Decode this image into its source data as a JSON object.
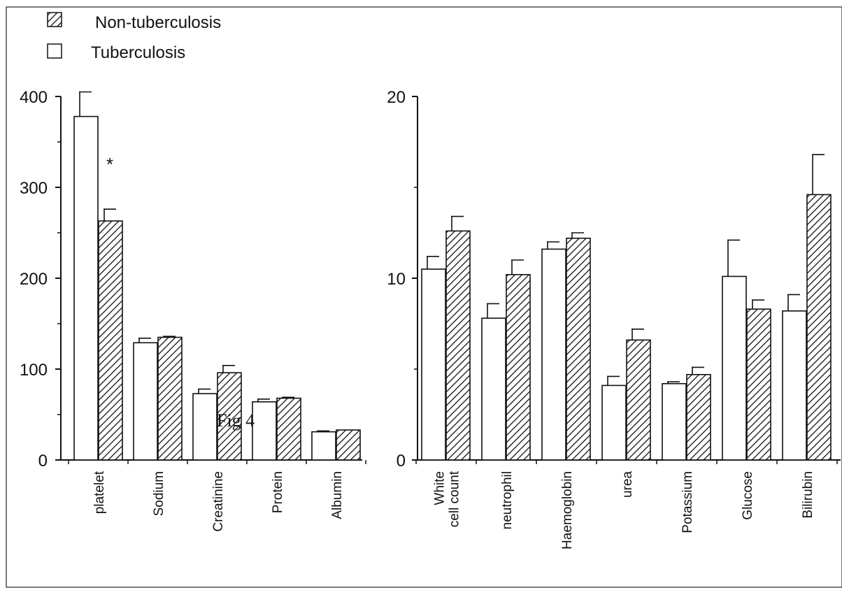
{
  "legend": {
    "entries": [
      {
        "label": "Non-tuberculosis",
        "pattern": "hatched"
      },
      {
        "label": "Tuberculosis",
        "pattern": "open"
      }
    ]
  },
  "overlay_text": "Fig 4",
  "colors": {
    "axis": "#111111",
    "bar_fill_open": "#ffffff",
    "hatch": "#111111"
  },
  "chart_data": [
    {
      "type": "bar",
      "categories": [
        "platelet",
        "Sodium",
        "Creatinine",
        "Protein",
        "Albumin"
      ],
      "series": [
        {
          "name": "Tuberculosis",
          "values": [
            378,
            129,
            73,
            64,
            31
          ],
          "errors": [
            27,
            5,
            5,
            3,
            1
          ]
        },
        {
          "name": "Non-tuberculosis",
          "values": [
            263,
            135,
            96,
            68,
            33
          ],
          "errors": [
            13,
            1,
            8,
            1,
            0
          ]
        }
      ],
      "ylim": [
        0,
        400
      ],
      "yticks": [
        "0",
        "100",
        "200",
        "300",
        "400"
      ],
      "annotations": [
        {
          "text": "*",
          "category": "platelet"
        }
      ],
      "title": "",
      "xlabel": "",
      "ylabel": "",
      "grid": false
    },
    {
      "type": "bar",
      "categories": [
        [
          "White",
          "cell count"
        ],
        [
          "neutrophil"
        ],
        [
          "Haemoglobin"
        ],
        [
          "urea"
        ],
        [
          "Potassium"
        ],
        [
          "Glucose"
        ],
        [
          "Bilirubin"
        ]
      ],
      "series": [
        {
          "name": "Tuberculosis",
          "values": [
            10.5,
            7.8,
            11.6,
            4.1,
            4.2,
            10.1,
            8.2
          ],
          "errors": [
            0.7,
            0.8,
            0.4,
            0.5,
            0.1,
            2.0,
            0.9
          ]
        },
        {
          "name": "Non-tuberculosis",
          "values": [
            12.6,
            10.2,
            12.2,
            6.6,
            4.7,
            8.3,
            14.6
          ],
          "errors": [
            0.8,
            0.8,
            0.3,
            0.6,
            0.4,
            0.5,
            2.2
          ]
        }
      ],
      "ylim": [
        0,
        20
      ],
      "yticks": [
        "0",
        "10",
        "20"
      ],
      "title": "",
      "xlabel": "",
      "ylabel": "",
      "grid": false
    }
  ]
}
